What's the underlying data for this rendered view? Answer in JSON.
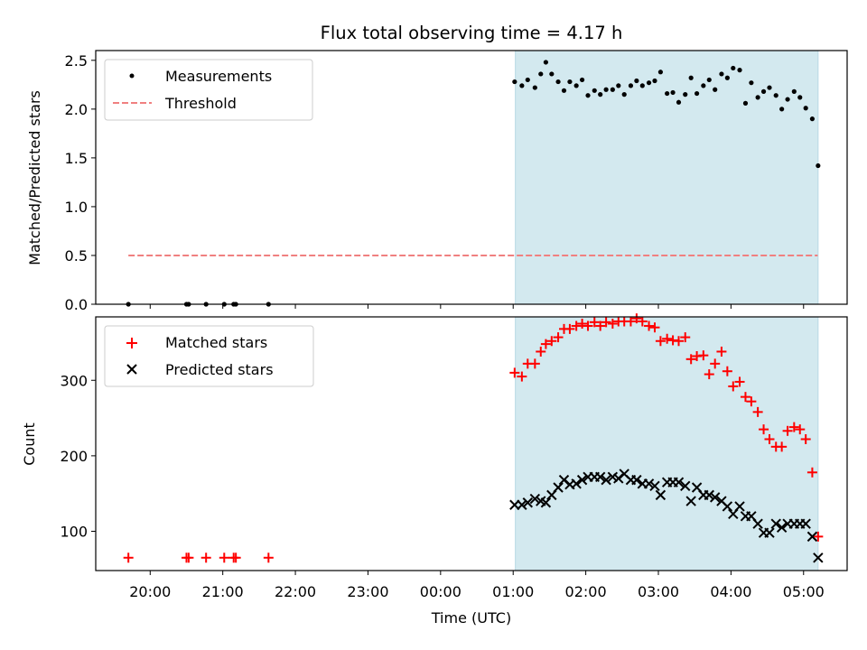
{
  "chart_data": [
    {
      "panel": "top",
      "type": "scatter",
      "title": "Flux total observing time = 4.17 h",
      "xlabel": "",
      "ylabel": "Matched/Predicted stars",
      "ylim": [
        0,
        2.6
      ],
      "yticks": [
        "0.0",
        "0.5",
        "1.0",
        "1.5",
        "2.0",
        "2.5"
      ],
      "ytick_values": [
        0,
        0.5,
        1.0,
        1.5,
        2.0,
        2.5
      ],
      "legend_position": "upper-left",
      "shaded_span_hours": [
        25.03,
        29.2
      ],
      "shade_color": "#d3e9ef",
      "series": [
        {
          "name": "Measurements",
          "kind": "dots",
          "color": "#000000",
          "x": [
            19.7,
            20.5,
            20.53,
            20.77,
            21.02,
            21.15,
            21.18,
            21.63,
            25.02,
            25.12,
            25.2,
            25.3,
            25.38,
            25.45,
            25.53,
            25.62,
            25.7,
            25.78,
            25.87,
            25.95,
            26.03,
            26.12,
            26.2,
            26.28,
            26.37,
            26.45,
            26.53,
            26.62,
            26.7,
            26.78,
            26.87,
            26.95,
            27.03,
            27.12,
            27.2,
            27.28,
            27.37,
            27.45,
            27.53,
            27.62,
            27.7,
            27.78,
            27.87,
            27.95,
            28.03,
            28.12,
            28.2,
            28.28,
            28.37,
            28.45,
            28.53,
            28.62,
            28.7,
            28.78,
            28.87,
            28.95,
            29.03,
            29.12,
            29.2
          ],
          "y": [
            0,
            0,
            0,
            0,
            0,
            0,
            0,
            0,
            2.28,
            2.24,
            2.3,
            2.22,
            2.36,
            2.48,
            2.36,
            2.28,
            2.19,
            2.28,
            2.24,
            2.3,
            2.14,
            2.19,
            2.15,
            2.2,
            2.2,
            2.24,
            2.15,
            2.24,
            2.29,
            2.24,
            2.27,
            2.29,
            2.38,
            2.16,
            2.17,
            2.07,
            2.15,
            2.32,
            2.16,
            2.24,
            2.3,
            2.2,
            2.36,
            2.32,
            2.42,
            2.4,
            2.06,
            2.27,
            2.12,
            2.18,
            2.22,
            2.14,
            2.0,
            2.1,
            2.18,
            2.12,
            2.01,
            1.9,
            1.42
          ]
        },
        {
          "name": "Threshold",
          "kind": "dashed-line",
          "color": "#f08080",
          "x": [
            19.7,
            29.2
          ],
          "y": [
            0.5,
            0.5
          ]
        }
      ]
    },
    {
      "panel": "bottom",
      "type": "scatter",
      "title": "",
      "xlabel": "Time (UTC)",
      "ylabel": "Count",
      "xlim_hours": [
        19.25,
        29.6
      ],
      "ylim": [
        48,
        384
      ],
      "yticks": [
        "100",
        "200",
        "300"
      ],
      "ytick_values": [
        100,
        200,
        300
      ],
      "xticks": [
        "20:00",
        "21:00",
        "22:00",
        "23:00",
        "00:00",
        "01:00",
        "02:00",
        "03:00",
        "04:00",
        "05:00"
      ],
      "xtick_hours": [
        20,
        21,
        22,
        23,
        24,
        25,
        26,
        27,
        28,
        29
      ],
      "legend_position": "upper-left",
      "shaded_span_hours": [
        25.03,
        29.2
      ],
      "shade_color": "#d3e9ef",
      "series": [
        {
          "name": "Matched stars",
          "kind": "plus",
          "color": "#ff0000",
          "x": [
            19.7,
            20.5,
            20.53,
            20.77,
            21.02,
            21.15,
            21.18,
            21.63,
            25.02,
            25.12,
            25.2,
            25.3,
            25.38,
            25.45,
            25.53,
            25.62,
            25.7,
            25.78,
            25.87,
            25.95,
            26.03,
            26.12,
            26.2,
            26.28,
            26.37,
            26.45,
            26.53,
            26.62,
            26.7,
            26.78,
            26.87,
            26.95,
            27.03,
            27.12,
            27.2,
            27.28,
            27.37,
            27.45,
            27.53,
            27.62,
            27.7,
            27.78,
            27.87,
            27.95,
            28.03,
            28.12,
            28.2,
            28.28,
            28.37,
            28.45,
            28.53,
            28.62,
            28.7,
            28.78,
            28.87,
            28.95,
            29.03,
            29.12,
            29.2
          ],
          "y": [
            65,
            65,
            65,
            65,
            65,
            65,
            65,
            65,
            310,
            305,
            322,
            322,
            338,
            348,
            352,
            357,
            368,
            368,
            372,
            375,
            372,
            377,
            372,
            377,
            375,
            378,
            378,
            378,
            382,
            378,
            372,
            370,
            352,
            355,
            353,
            352,
            357,
            328,
            332,
            333,
            308,
            322,
            338,
            312,
            292,
            298,
            278,
            272,
            258,
            235,
            222,
            212,
            212,
            233,
            238,
            235,
            222,
            178,
            93
          ]
        },
        {
          "name": "Predicted stars",
          "kind": "x",
          "color": "#000000",
          "x": [
            25.02,
            25.12,
            25.2,
            25.3,
            25.38,
            25.45,
            25.53,
            25.62,
            25.7,
            25.78,
            25.87,
            25.95,
            26.03,
            26.12,
            26.2,
            26.28,
            26.37,
            26.45,
            26.53,
            26.62,
            26.7,
            26.78,
            26.87,
            26.95,
            27.03,
            27.12,
            27.2,
            27.28,
            27.37,
            27.45,
            27.53,
            27.62,
            27.7,
            27.78,
            27.87,
            27.95,
            28.03,
            28.12,
            28.2,
            28.28,
            28.37,
            28.45,
            28.53,
            28.62,
            28.7,
            28.78,
            28.87,
            28.95,
            29.03,
            29.12,
            29.2
          ],
          "y": [
            135,
            135,
            138,
            143,
            140,
            138,
            148,
            158,
            168,
            162,
            163,
            168,
            172,
            172,
            172,
            168,
            172,
            170,
            176,
            168,
            168,
            163,
            163,
            160,
            148,
            165,
            165,
            165,
            160,
            140,
            158,
            148,
            148,
            145,
            140,
            133,
            123,
            133,
            120,
            120,
            110,
            98,
            98,
            110,
            105,
            110,
            110,
            110,
            110,
            93,
            65
          ]
        }
      ]
    }
  ]
}
